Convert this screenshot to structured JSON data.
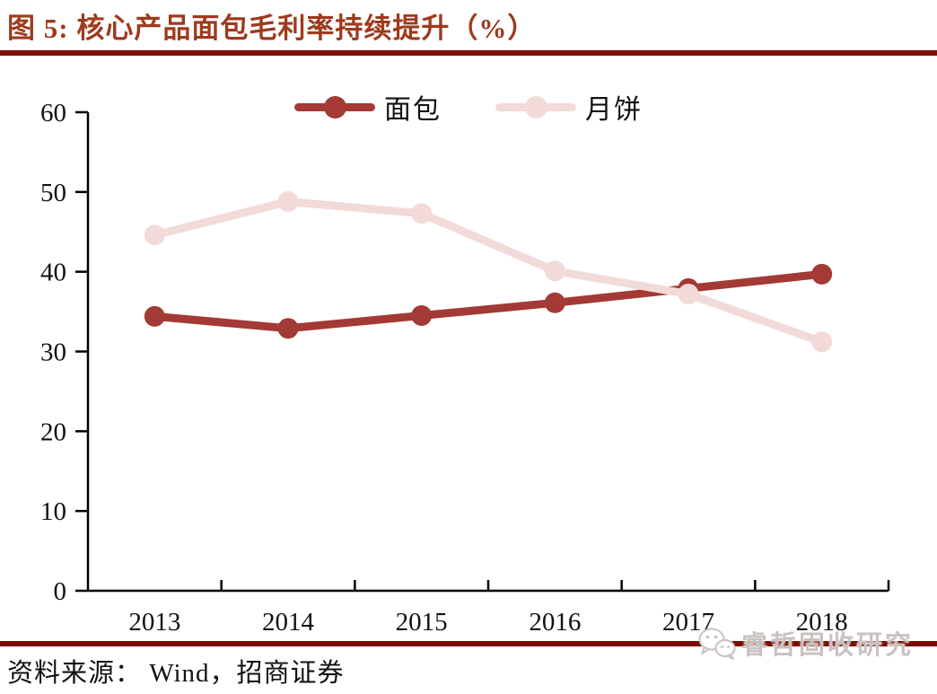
{
  "header": {
    "figure_label": "图 5:",
    "title": "图 5:  核心产品面包毛利率持续提升（%）"
  },
  "colors": {
    "title_red": "#9E3A1D",
    "rule_dark_red": "#7B0D02",
    "axis_black": "#000000",
    "bread_red": "#A33A35",
    "mooncake_pink": "#F2DAD8",
    "watermark_gray": "#C9C2C0"
  },
  "chart_data": {
    "type": "line",
    "title": "核心产品面包毛利率持续提升（%）",
    "categories": [
      "2013",
      "2014",
      "2015",
      "2016",
      "2017",
      "2018"
    ],
    "series": [
      {
        "key": "bread",
        "name": "面包",
        "color": "#A33A35",
        "values": [
          34.4,
          32.9,
          34.5,
          36.1,
          37.9,
          39.7
        ]
      },
      {
        "key": "mooncake",
        "name": "月饼",
        "color": "#F2DAD8",
        "values": [
          44.6,
          48.8,
          47.3,
          40.1,
          37.2,
          31.2
        ]
      }
    ],
    "xlabel": "",
    "ylabel": "",
    "ylim": [
      0,
      60
    ],
    "ytick_step": 10,
    "ytick_labels": [
      "0",
      "10",
      "20",
      "30",
      "40",
      "50",
      "60"
    ],
    "grid": false,
    "legend_position": "top-center"
  },
  "footer": {
    "source_label": "资料来源： Wind，招商证券",
    "watermark_text": "睿哲固收研究",
    "watermark_icon": "wechat-icon"
  }
}
